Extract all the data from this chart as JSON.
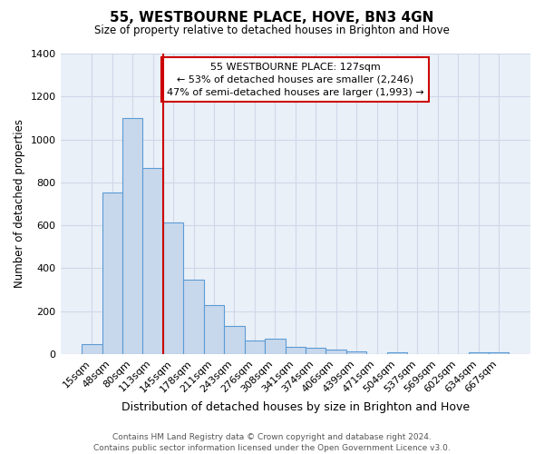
{
  "title": "55, WESTBOURNE PLACE, HOVE, BN3 4GN",
  "subtitle": "Size of property relative to detached houses in Brighton and Hove",
  "xlabel": "Distribution of detached houses by size in Brighton and Hove",
  "ylabel": "Number of detached properties",
  "categories": [
    "15sqm",
    "48sqm",
    "80sqm",
    "113sqm",
    "145sqm",
    "178sqm",
    "211sqm",
    "243sqm",
    "276sqm",
    "308sqm",
    "341sqm",
    "374sqm",
    "406sqm",
    "439sqm",
    "471sqm",
    "504sqm",
    "537sqm",
    "569sqm",
    "602sqm",
    "634sqm",
    "667sqm"
  ],
  "values": [
    48,
    752,
    1100,
    868,
    613,
    345,
    226,
    132,
    62,
    70,
    33,
    30,
    22,
    14,
    0,
    10,
    0,
    0,
    0,
    10,
    10
  ],
  "bar_color": "#c8d8ec",
  "bar_edge_color": "#5b9bd5",
  "vline_pos": 3.5,
  "vline_color": "#cc0000",
  "annotation_title": "55 WESTBOURNE PLACE: 127sqm",
  "annotation_line1": "← 53% of detached houses are smaller (2,246)",
  "annotation_line2": "47% of semi-detached houses are larger (1,993) →",
  "annotation_box_facecolor": "#ffffff",
  "annotation_box_edgecolor": "#cc0000",
  "ylim": [
    0,
    1400
  ],
  "yticks": [
    0,
    200,
    400,
    600,
    800,
    1000,
    1200,
    1400
  ],
  "grid_color": "#d0d8e8",
  "plot_bg_color": "#eaf0f8",
  "footer1": "Contains HM Land Registry data © Crown copyright and database right 2024.",
  "footer2": "Contains public sector information licensed under the Open Government Licence v3.0."
}
